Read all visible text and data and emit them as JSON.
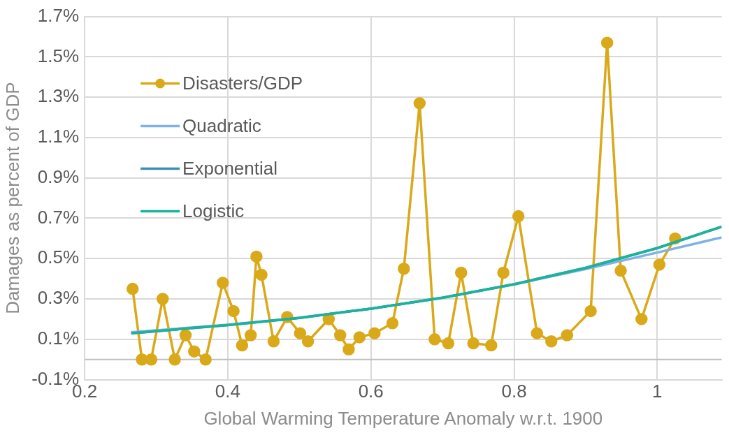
{
  "chart_data": {
    "type": "line",
    "xlabel": "Global Warming Temperature Anomaly w.r.t. 1900",
    "ylabel": "Damages as percent of GDP",
    "xlim": [
      0.2,
      1.09
    ],
    "xticks": [
      0.2,
      0.4,
      0.6,
      0.8,
      1
    ],
    "ylim": [
      -0.1,
      1.7
    ],
    "yticks": [
      {
        "value": -0.1,
        "label": "-0.1%"
      },
      {
        "value": 0.1,
        "label": "0.1%"
      },
      {
        "value": 0.3,
        "label": "0.3%"
      },
      {
        "value": 0.5,
        "label": "0.5%"
      },
      {
        "value": 0.7,
        "label": "0.7%"
      },
      {
        "value": 0.9,
        "label": "0.9%"
      },
      {
        "value": 1.1,
        "label": "1.1%"
      },
      {
        "value": 1.3,
        "label": "1.3%"
      },
      {
        "value": 1.5,
        "label": "1.5%"
      },
      {
        "value": 1.7,
        "label": "1.7%"
      }
    ],
    "grid": true,
    "legend": "top left",
    "ref_lines": [
      {
        "axis": "y",
        "value": 0,
        "color": "#bfbfbf"
      }
    ],
    "series": [
      {
        "name": "Disasters/GDP",
        "color": "#daa91a",
        "marker": "circle",
        "x": [
          0.267,
          0.28,
          0.293,
          0.309,
          0.326,
          0.341,
          0.353,
          0.369,
          0.393,
          0.408,
          0.42,
          0.432,
          0.44,
          0.447,
          0.464,
          0.483,
          0.501,
          0.512,
          0.541,
          0.557,
          0.569,
          0.584,
          0.605,
          0.63,
          0.646,
          0.668,
          0.689,
          0.708,
          0.726,
          0.743,
          0.768,
          0.785,
          0.806,
          0.832,
          0.852,
          0.874,
          0.907,
          0.93,
          0.949,
          0.978,
          1.003,
          1.025
        ],
        "values": [
          0.35,
          0,
          0,
          0.3,
          0,
          0.12,
          0.04,
          0,
          0.38,
          0.24,
          0.07,
          0.12,
          0.51,
          0.42,
          0.09,
          0.21,
          0.13,
          0.09,
          0.2,
          0.12,
          0.05,
          0.11,
          0.13,
          0.18,
          0.45,
          1.27,
          0.1,
          0.08,
          0.43,
          0.08,
          0.07,
          0.43,
          0.71,
          0.13,
          0.09,
          0.12,
          0.24,
          1.57,
          0.44,
          0.2,
          0.47,
          0.6
        ]
      },
      {
        "name": "Quadratic",
        "color": "#7fb2e5",
        "marker": "none",
        "x": [
          0.265,
          0.4,
          0.5,
          0.6,
          0.7,
          0.8,
          0.9,
          1.0,
          1.09
        ],
        "values": [
          0.135,
          0.172,
          0.207,
          0.252,
          0.305,
          0.372,
          0.448,
          0.53,
          0.605
        ]
      },
      {
        "name": "Exponential",
        "color": "#3a8fb7",
        "marker": "none",
        "x": [
          0.265,
          0.4,
          0.5,
          0.6,
          0.7,
          0.8,
          0.9,
          1.0,
          1.09
        ],
        "values": [
          0.13,
          0.17,
          0.206,
          0.252,
          0.306,
          0.373,
          0.454,
          0.552,
          0.658
        ]
      },
      {
        "name": "Logistic",
        "color": "#1bb39a",
        "marker": "none",
        "x": [
          0.265,
          0.4,
          0.5,
          0.6,
          0.7,
          0.8,
          0.9,
          1.0,
          1.09
        ],
        "values": [
          0.13,
          0.17,
          0.206,
          0.252,
          0.306,
          0.373,
          0.454,
          0.552,
          0.658
        ]
      }
    ]
  }
}
